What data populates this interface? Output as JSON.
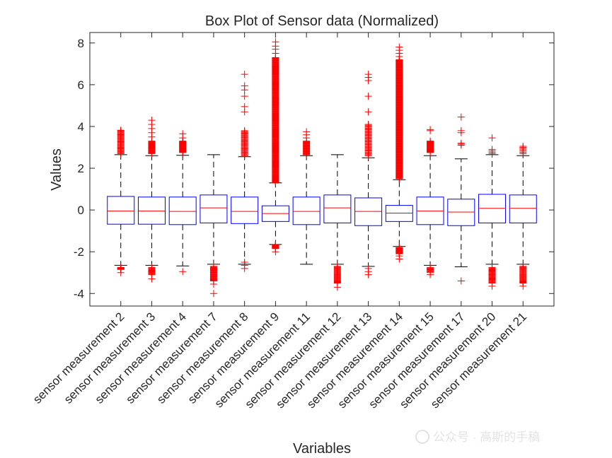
{
  "chart_data": {
    "type": "box",
    "title": "Box Plot of Sensor data (Normalized)",
    "xlabel": "Variables",
    "ylabel": "Values",
    "ylim": [
      -4.6,
      8.5
    ],
    "yticks": [
      -4,
      -2,
      0,
      2,
      4,
      6,
      8
    ],
    "grid": false,
    "box_color": "#0000ff",
    "median_color": "#ff0000",
    "outlier_color": "#ff0000",
    "whisker_color": "#000000",
    "categories": [
      "sensor measurement 2",
      "sensor measurement 3",
      "sensor measurement 4",
      "sensor measurement 7",
      "sensor measurement 8",
      "sensor measurement 9",
      "sensor measurement 11",
      "sensor measurement 12",
      "sensor measurement 13",
      "sensor measurement 14",
      "sensor measurement 15",
      "sensor measurement 17",
      "sensor measurement 20",
      "sensor measurement 21"
    ],
    "boxes": [
      {
        "q1": -0.68,
        "median": -0.05,
        "q3": 0.65,
        "whisker_low": -2.65,
        "whisker_high": 2.65
      },
      {
        "q1": -0.68,
        "median": -0.05,
        "q3": 0.62,
        "whisker_low": -2.65,
        "whisker_high": 2.6
      },
      {
        "q1": -0.7,
        "median": -0.07,
        "q3": 0.62,
        "whisker_low": -2.68,
        "whisker_high": 2.62
      },
      {
        "q1": -0.62,
        "median": 0.1,
        "q3": 0.72,
        "whisker_low": -2.6,
        "whisker_high": 2.65
      },
      {
        "q1": -0.65,
        "median": -0.07,
        "q3": 0.62,
        "whisker_low": -2.6,
        "whisker_high": 2.55
      },
      {
        "q1": -0.55,
        "median": -0.17,
        "q3": 0.2,
        "whisker_low": -1.65,
        "whisker_high": 1.3
      },
      {
        "q1": -0.7,
        "median": -0.07,
        "q3": 0.62,
        "whisker_low": -2.6,
        "whisker_high": 2.6
      },
      {
        "q1": -0.62,
        "median": 0.1,
        "q3": 0.72,
        "whisker_low": -2.6,
        "whisker_high": 2.65
      },
      {
        "q1": -0.75,
        "median": -0.07,
        "q3": 0.58,
        "whisker_low": -2.7,
        "whisker_high": 2.5
      },
      {
        "q1": -0.55,
        "median": -0.15,
        "q3": 0.22,
        "whisker_low": -1.75,
        "whisker_high": 1.45
      },
      {
        "q1": -0.7,
        "median": -0.05,
        "q3": 0.62,
        "whisker_low": -2.65,
        "whisker_high": 2.6
      },
      {
        "q1": -0.75,
        "median": -0.1,
        "q3": 0.52,
        "whisker_low": -2.72,
        "whisker_high": 2.45
      },
      {
        "q1": -0.62,
        "median": 0.08,
        "q3": 0.75,
        "whisker_low": -2.6,
        "whisker_high": 2.65
      },
      {
        "q1": -0.62,
        "median": 0.08,
        "q3": 0.72,
        "whisker_low": -2.6,
        "whisker_high": 2.6
      }
    ],
    "outliers": [
      {
        "high": [
          [
            2.7,
            3.8,
            30
          ],
          [
            3.82
          ]
        ],
        "low": [
          [
            -2.85,
            -2.75,
            8
          ],
          [
            -3.0
          ]
        ]
      },
      {
        "high": [
          [
            2.7,
            3.3,
            25
          ],
          [
            3.5,
            3.7,
            3.9,
            4.1,
            4.3
          ]
        ],
        "low": [
          [
            -2.75,
            -3.1,
            12
          ],
          [
            -3.3
          ]
        ]
      },
      {
        "high": [
          [
            2.75,
            3.3,
            25
          ],
          [
            3.45,
            3.65
          ]
        ],
        "low": [
          [],
          [
            -2.95
          ]
        ]
      },
      {
        "high": [],
        "low": [
          [
            -2.7,
            -3.4,
            25
          ],
          [
            -3.55,
            -4.0
          ]
        ]
      },
      {
        "high": [
          [
            2.6,
            3.8,
            30
          ],
          [
            4.7,
            4.95,
            5.45,
            5.75,
            5.95,
            6.5
          ]
        ],
        "low": [
          [],
          [
            -2.5,
            -2.65,
            -2.8
          ]
        ]
      },
      {
        "high": [
          [
            1.3,
            7.3,
            240
          ],
          [
            7.5,
            7.7,
            7.85,
            8.05
          ]
        ],
        "low": [
          [
            -1.65,
            -1.85,
            15
          ],
          [
            -2.0
          ]
        ]
      },
      {
        "high": [
          [
            2.65,
            3.3,
            25
          ],
          [
            3.45,
            3.6,
            3.75
          ]
        ],
        "low": [],
        "note": ""
      },
      {
        "high": [],
        "low": [
          [
            -2.7,
            -3.5,
            25
          ],
          [
            -3.7
          ]
        ]
      },
      {
        "high": [
          [
            2.6,
            4.1,
            35
          ],
          [
            4.7,
            5.45,
            6.2,
            6.35,
            6.5
          ]
        ],
        "low": [
          [],
          [
            -2.8,
            -2.95,
            -3.1
          ]
        ]
      },
      {
        "high": [
          [
            1.5,
            7.2,
            240
          ],
          [
            7.35,
            7.5,
            7.65,
            7.8
          ]
        ],
        "low": [
          [
            -1.8,
            -2.1,
            15
          ],
          [
            -2.2,
            -2.35
          ]
        ]
      },
      {
        "high": [
          [
            2.75,
            3.3,
            25
          ],
          [
            3.8,
            3.85
          ]
        ],
        "low": [
          [
            -2.75,
            -3.0,
            8
          ],
          [
            -3.1
          ]
        ]
      },
      {
        "high": [
          [
            3.1,
            3.2,
            3
          ],
          [
            3.7,
            3.8,
            4.45
          ]
        ],
        "low": [
          [],
          [
            -3.4
          ]
        ]
      },
      {
        "high": [
          [
            2.7,
            2.9,
            4
          ],
          [
            3.45
          ]
        ],
        "low": [
          [
            -2.75,
            -3.5,
            25
          ],
          [
            -3.65
          ]
        ]
      },
      {
        "high": [
          [
            2.7,
            3.0,
            6
          ],
          [
            3.05
          ]
        ],
        "low": [
          [
            -2.7,
            -3.5,
            25
          ],
          [
            -3.65
          ]
        ]
      }
    ]
  },
  "watermark": {
    "text": "公众号 · 高斯的手稿"
  }
}
